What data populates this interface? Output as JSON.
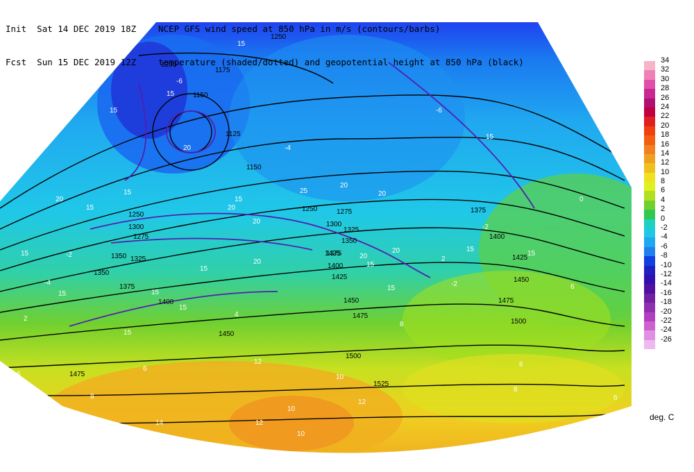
{
  "header": {
    "init_label": "Init",
    "init_time": "Sat 14 DEC 2019 18Z",
    "fcst_label": "Fcst",
    "fcst_time": "Sun 15 DEC 2019 12Z",
    "title_line1": "NCEP GFS wind speed at 850 hPa in m/s (contours/barbs)",
    "title_line2": "temperature (shaded/dotted) and geopotential height at 850 hPa (black)"
  },
  "colorbar": {
    "levels": [
      "34",
      "32",
      "30",
      "28",
      "26",
      "24",
      "22",
      "20",
      "18",
      "16",
      "14",
      "12",
      "10",
      "8",
      "6",
      "4",
      "2",
      "0",
      "-2",
      "-4",
      "-6",
      "-8",
      "-10",
      "-12",
      "-14",
      "-16",
      "-18",
      "-20",
      "-22",
      "-24",
      "-26"
    ],
    "colors": [
      "#f7b4c8",
      "#f080b8",
      "#e050a8",
      "#c82890",
      "#b01070",
      "#c00040",
      "#e02020",
      "#f04010",
      "#f06010",
      "#f08020",
      "#f0a020",
      "#f0c020",
      "#f0e020",
      "#e0f020",
      "#b0e020",
      "#70d030",
      "#30c850",
      "#20d0c0",
      "#20c8e8",
      "#20a8f0",
      "#2080f0",
      "#1040e0",
      "#2020c0",
      "#3010b0",
      "#5010a0",
      "#7020a0",
      "#9030b0",
      "#b040c0",
      "#d060d0",
      "#e090e0",
      "#f0b8f0"
    ],
    "unit": "deg. C"
  },
  "contour_labels": {
    "height": [
      "1250",
      "1200",
      "1175",
      "1150",
      "1125",
      "1150",
      "1250",
      "1275",
      "1250",
      "1275",
      "1300",
      "1325",
      "1350",
      "1375",
      "1400",
      "1425",
      "1450",
      "1475",
      "1500",
      "1525",
      "1375",
      "1400",
      "1425",
      "1450",
      "1475",
      "1500",
      "1475",
      "1450",
      "1425",
      "1400",
      "1375",
      "1350",
      "1325",
      "1300",
      "1350"
    ],
    "speed": [
      "15",
      "15",
      "15",
      "15",
      "20",
      "15",
      "20",
      "15",
      "15",
      "20",
      "15",
      "20",
      "25",
      "20",
      "15",
      "15",
      "20",
      "15",
      "20",
      "15",
      "15",
      "15",
      "15",
      "15",
      "20",
      "20",
      "15"
    ],
    "temp": [
      "-2",
      "-4",
      "-2",
      "-6",
      "2",
      "4",
      "6",
      "6",
      "8",
      "8",
      "10",
      "10",
      "12",
      "12",
      "14",
      "12",
      "6",
      "6",
      "8",
      "10",
      "6",
      "2",
      "0",
      "-2",
      "-4",
      "-6"
    ]
  }
}
